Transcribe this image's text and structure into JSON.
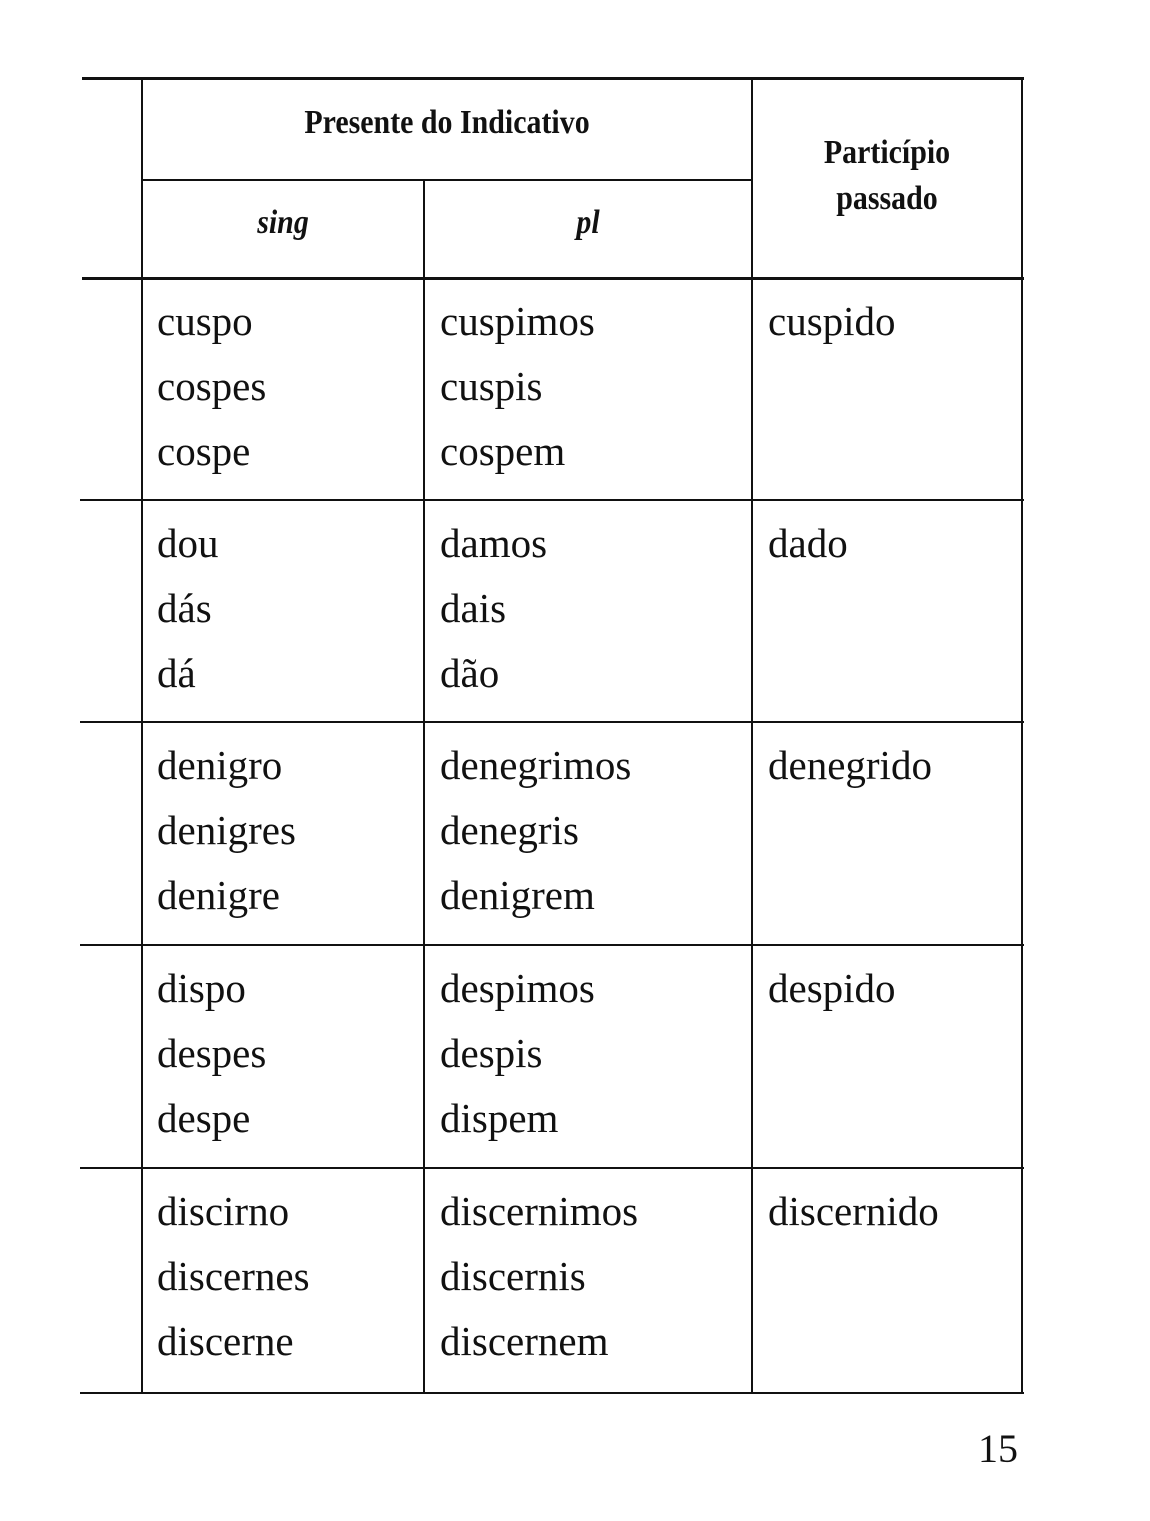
{
  "header": {
    "group": "Presente do Indicativo",
    "sing": "sing",
    "pl": "pl",
    "participle": [
      "Particípio",
      "passado"
    ]
  },
  "rows": [
    {
      "sing": [
        "cuspo",
        "cospes",
        "cospe"
      ],
      "pl": [
        "cuspimos",
        "cuspis",
        "cospem"
      ],
      "part": "cuspido"
    },
    {
      "sing": [
        "dou",
        "dás",
        "dá"
      ],
      "pl": [
        "damos",
        "dais",
        "dão"
      ],
      "part": "dado"
    },
    {
      "sing": [
        "denigro",
        "denigres",
        "denigre"
      ],
      "pl": [
        "denegrimos",
        "denegris",
        "denigrem"
      ],
      "part": "denegrido"
    },
    {
      "sing": [
        "dispo",
        "despes",
        "despe"
      ],
      "pl": [
        "despimos",
        "despis",
        "dispem"
      ],
      "part": "despido"
    },
    {
      "sing": [
        "discirno",
        "discernes",
        "discerne"
      ],
      "pl": [
        "discernimos",
        "discernis",
        "discernem"
      ],
      "part": "discernido"
    }
  ],
  "page_number": "15"
}
